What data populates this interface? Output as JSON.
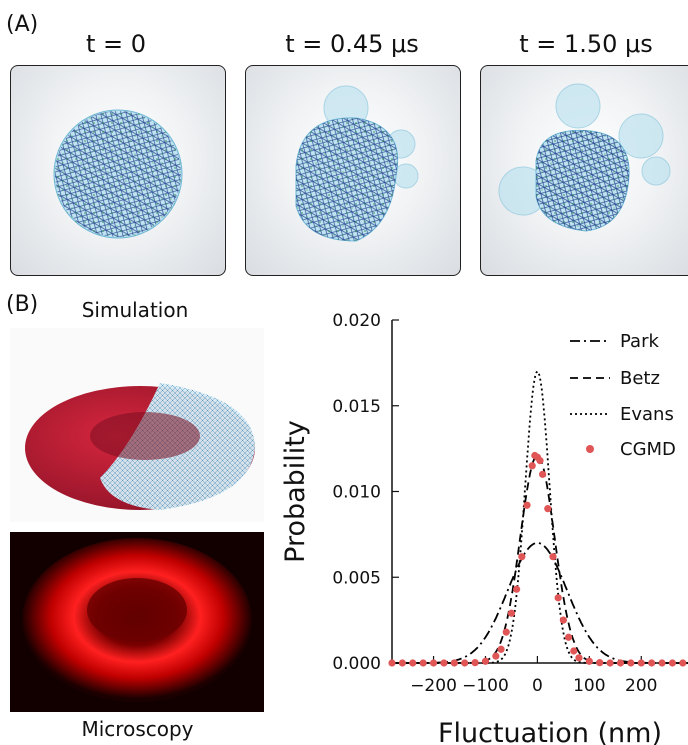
{
  "panel_a": {
    "label": "(A)",
    "snapshots": [
      {
        "time": "t = 0"
      },
      {
        "time": "t = 0.45 μs"
      },
      {
        "time": "t = 1.50 μs"
      }
    ]
  },
  "panel_b": {
    "label": "(B)",
    "simulation_caption": "Simulation",
    "microscopy_caption": "Microscopy"
  },
  "chart_data": {
    "type": "line",
    "xlabel": "Fluctuation (nm)",
    "ylabel": "Probability",
    "xlim": [
      -280,
      290
    ],
    "ylim": [
      0,
      0.02
    ],
    "xticks": [
      -200,
      -100,
      0,
      100,
      200
    ],
    "yticks": [
      "0.000",
      "0.005",
      "0.010",
      "0.015",
      "0.020"
    ],
    "legend_position": "top-right",
    "series": [
      {
        "name": "Park",
        "style": "dash-dot",
        "color": "#000000",
        "sigma": 57,
        "peak": 0.007
      },
      {
        "name": "Betz",
        "style": "dashed",
        "color": "#000000",
        "sigma": 33,
        "peak": 0.0121
      },
      {
        "name": "Evans",
        "style": "dotted",
        "color": "#000000",
        "sigma": 23.5,
        "peak": 0.017
      },
      {
        "name": "CGMD",
        "style": "markers",
        "color": "#e05555",
        "x": [
          -280,
          -260,
          -240,
          -220,
          -200,
          -180,
          -160,
          -140,
          -120,
          -100,
          -80,
          -70,
          -60,
          -50,
          -40,
          -30,
          -20,
          -10,
          -5,
          0,
          5,
          10,
          20,
          30,
          40,
          50,
          60,
          70,
          80,
          100,
          120,
          140,
          160,
          180,
          200,
          220,
          240,
          260,
          280
        ],
        "y": [
          0,
          0,
          0,
          0,
          0,
          0,
          0,
          0,
          2e-05,
          0.0001,
          0.0004,
          0.0008,
          0.0018,
          0.0029,
          0.0043,
          0.0062,
          0.0092,
          0.0115,
          0.0121,
          0.012,
          0.0118,
          0.011,
          0.009,
          0.0062,
          0.0038,
          0.0025,
          0.0015,
          0.0007,
          0.0003,
          0.0001,
          2e-05,
          0,
          0,
          0,
          0,
          0,
          0,
          0,
          0
        ]
      }
    ]
  }
}
